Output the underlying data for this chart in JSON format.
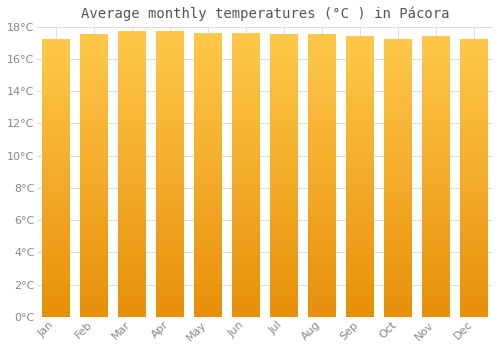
{
  "title": "Average monthly temperatures (°C ) in Pácora",
  "months": [
    "Jan",
    "Feb",
    "Mar",
    "Apr",
    "May",
    "Jun",
    "Jul",
    "Aug",
    "Sep",
    "Oct",
    "Nov",
    "Dec"
  ],
  "values": [
    17.2,
    17.5,
    17.7,
    17.7,
    17.6,
    17.6,
    17.5,
    17.5,
    17.4,
    17.2,
    17.4,
    17.2
  ],
  "ylim": [
    0,
    18
  ],
  "yticks": [
    0,
    2,
    4,
    6,
    8,
    10,
    12,
    14,
    16,
    18
  ],
  "bar_color_top": "#FFC84A",
  "bar_color_bottom": "#E8900A",
  "background_color": "#FFFFFF",
  "grid_color": "#DDDDDD",
  "title_fontsize": 10,
  "tick_fontsize": 8
}
